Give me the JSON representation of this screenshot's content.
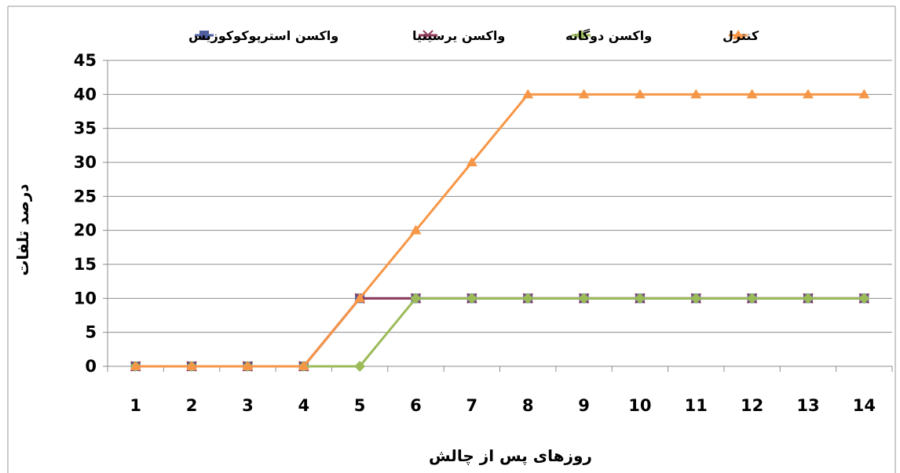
{
  "chart_data": {
    "type": "line",
    "title": "",
    "xlabel": "روزهای پس از چالش",
    "ylabel": "درصد تلفات",
    "categories": [
      "1",
      "2",
      "3",
      "4",
      "5",
      "6",
      "7",
      "8",
      "9",
      "10",
      "11",
      "12",
      "13",
      "14"
    ],
    "ylim": [
      0,
      45
    ],
    "yticks": [
      0,
      5,
      10,
      15,
      20,
      25,
      30,
      35,
      40,
      45
    ],
    "grid": "horizontal",
    "legend_position": "top",
    "series": [
      {
        "name": "واکسن استرپوکوکوزیس",
        "color": "#4F5FA0",
        "marker": "square",
        "values": [
          0,
          0,
          0,
          0,
          10,
          10,
          10,
          10,
          10,
          10,
          10,
          10,
          10,
          10
        ]
      },
      {
        "name": "واکسن یرسینیا",
        "color": "#8E3A59",
        "marker": "x",
        "values": [
          0,
          0,
          0,
          0,
          10,
          10,
          10,
          10,
          10,
          10,
          10,
          10,
          10,
          10
        ]
      },
      {
        "name": "واکسن دوگانه",
        "color": "#9BBB59",
        "marker": "diamond",
        "values": [
          0,
          0,
          0,
          0,
          0,
          10,
          10,
          10,
          10,
          10,
          10,
          10,
          10,
          10
        ]
      },
      {
        "name": "کنترل",
        "color": "#F79646",
        "marker": "triangle",
        "values": [
          0,
          0,
          0,
          0,
          10,
          20,
          30,
          40,
          40,
          40,
          40,
          40,
          40,
          40
        ]
      }
    ]
  }
}
